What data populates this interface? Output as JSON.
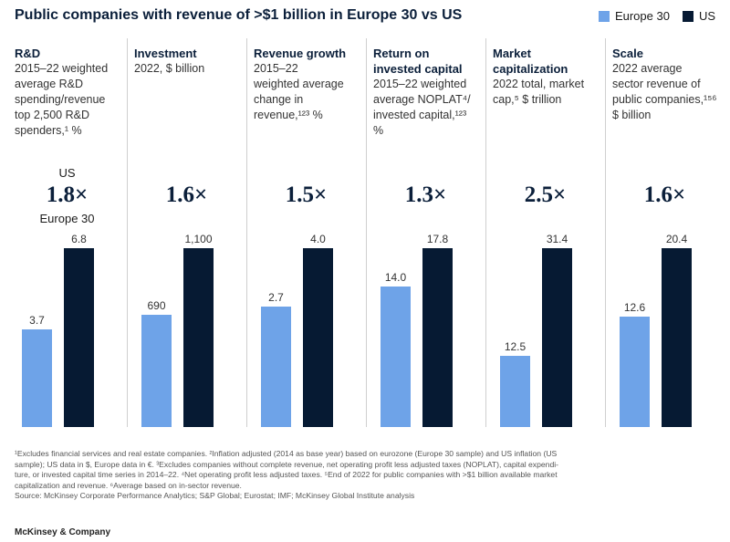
{
  "title": "Public companies with revenue of >$1 billion in Europe 30 vs US",
  "legend": [
    {
      "label": "Europe 30",
      "color": "#6ea3e8"
    },
    {
      "label": "US",
      "color": "#061a33"
    }
  ],
  "chart_data": {
    "type": "bar",
    "series": [
      {
        "name": "Europe 30",
        "color": "#6ea3e8"
      },
      {
        "name": "US",
        "color": "#061a33"
      }
    ],
    "panels": [
      {
        "title": "R&D",
        "subtitle": [
          "2015–22 weighted",
          "average R&D",
          "spending/revenue",
          "top 2,500 R&D",
          "spenders,¹ %"
        ],
        "ratio": "1.8×",
        "ratio_top_label": "US",
        "ratio_bottom_label": "Europe 30",
        "values": [
          3.7,
          6.8
        ],
        "value_labels": [
          "3.7",
          "6.8"
        ],
        "ymax": 6.8
      },
      {
        "title": "Investment",
        "subtitle": [
          "2022, $ billion"
        ],
        "ratio": "1.6×",
        "values": [
          690,
          1100
        ],
        "value_labels": [
          "690",
          "1,100"
        ],
        "ymax": 1100
      },
      {
        "title": "Revenue growth",
        "subtitle": [
          "2015–22",
          "weighted average",
          "change in",
          "revenue,¹²³ %"
        ],
        "ratio": "1.5×",
        "values": [
          2.7,
          4.0
        ],
        "value_labels": [
          "2.7",
          "4.0"
        ],
        "ymax": 4.0
      },
      {
        "title": "Return on invested capital",
        "subtitle": [
          "2015–22 weighted",
          "average NOPLAT⁴/",
          "invested capital,¹²³",
          "%"
        ],
        "ratio": "1.3×",
        "values": [
          14.0,
          17.8
        ],
        "value_labels": [
          "14.0",
          "17.8"
        ],
        "ymax": 17.8
      },
      {
        "title": "Market capitalization",
        "subtitle": [
          "2022 total, market",
          "cap,⁵ $ trillion"
        ],
        "ratio": "2.5×",
        "values": [
          12.5,
          31.4
        ],
        "value_labels": [
          "12.5",
          "31.4"
        ],
        "ymax": 31.4
      },
      {
        "title": "Scale",
        "subtitle": [
          "2022 average",
          "sector revenue of",
          "public companies,¹⁵⁶",
          "$ billion"
        ],
        "ratio": "1.6×",
        "values": [
          12.6,
          20.4
        ],
        "value_labels": [
          "12.6",
          "20.4"
        ],
        "ymax": 20.4
      }
    ]
  },
  "footnotes": [
    "¹Excludes financial services and real estate companies. ²Inflation adjusted (2014 as base year) based on eurozone (Europe 30 sample) and US inflation (US",
    "sample); US data in $, Europe data in €. ³Excludes companies without complete revenue, net operating profit less adjusted taxes (NOPLAT), capital expendi-",
    "ture, or invested capital time series in 2014–22. ⁴Net operating profit less adjusted taxes. ⁵End of 2022 for public companies with >$1 billion available market",
    "capitalization and revenue. ⁶Average based on in-sector revenue.",
    "Source: McKinsey Corporate Performance Analytics; S&P Global; Eurostat; IMF; McKinsey Global Institute analysis"
  ],
  "brand": "McKinsey & Company"
}
